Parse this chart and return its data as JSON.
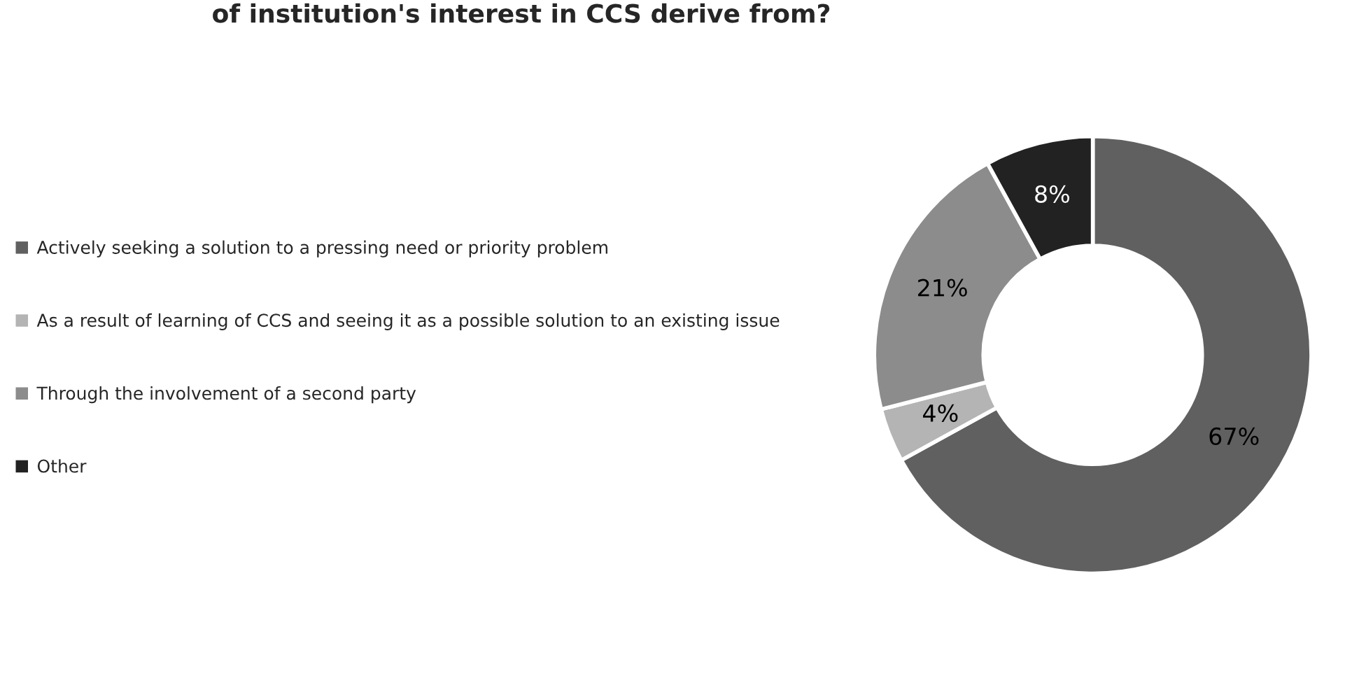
{
  "chart_data": {
    "type": "donut",
    "title": "of institution's interest in CCS derive from?",
    "categories": [
      "Actively seeking a solution to a pressing need or priority problem",
      "As a result of learning of CCS and seeing it as a possible solution to an existing issue",
      "Through the involvement of a second party",
      "Other"
    ],
    "values": [
      67,
      4,
      21,
      8
    ],
    "colors": [
      "#606060",
      "#b4b4b4",
      "#8c8c8c",
      "#222222"
    ],
    "value_labels": [
      "67%",
      "4%",
      "21%",
      "8%"
    ],
    "legend": "left"
  }
}
